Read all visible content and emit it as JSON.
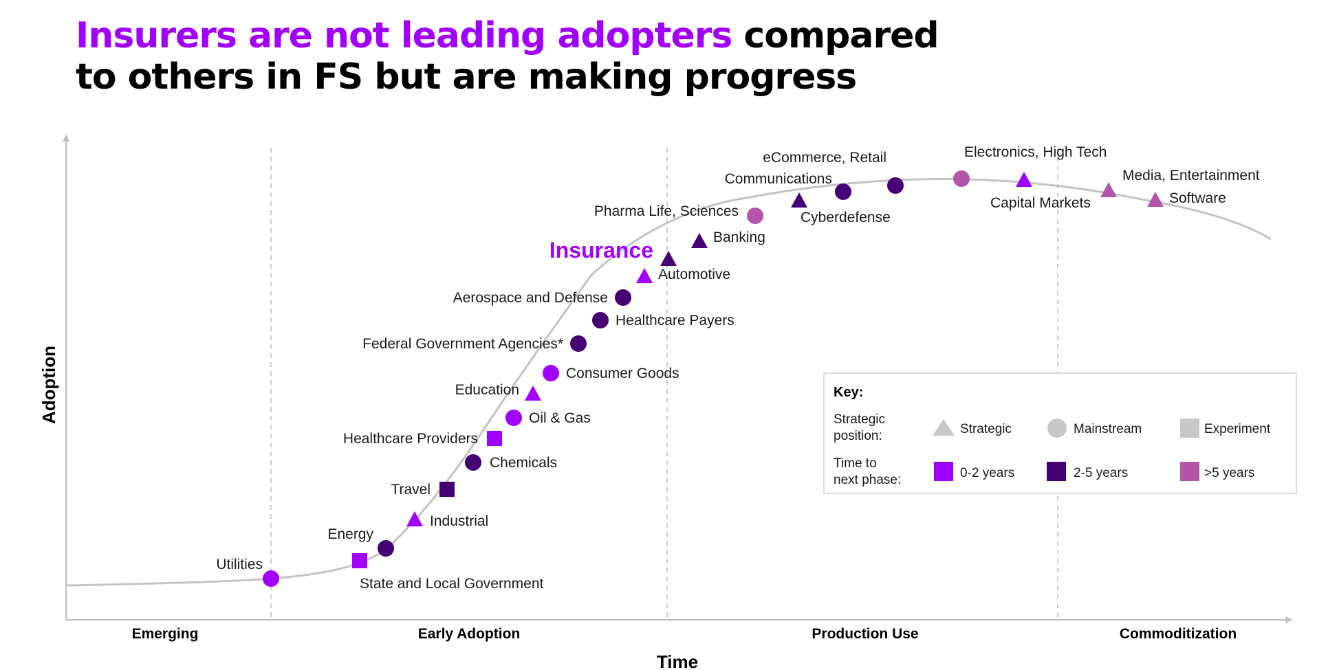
{
  "title": {
    "accent": "Insurers are not leading adopters",
    "rest_line1": " compared",
    "line2": "to others in FS but are making progress"
  },
  "colors": {
    "bright_purple": "#a100ff",
    "dark_purple": "#460073",
    "light_purple": "#b455aa",
    "curve": "#c4c4c4",
    "axis": "#bdbdbd",
    "key_gray": "#c8c8c8"
  },
  "chart_data": {
    "type": "scatter",
    "x_label": "Time",
    "y_label": "Adoption",
    "phases": [
      "Emerging",
      "Early Adoption",
      "Production Use",
      "Commoditization"
    ],
    "highlight": "Insurance",
    "points": [
      {
        "name": "Utilities",
        "shape": "circle",
        "time": "0-2 years"
      },
      {
        "name": "State and Local Government",
        "shape": "square",
        "time": "0-2 years"
      },
      {
        "name": "Energy",
        "shape": "circle",
        "time": "2-5 years"
      },
      {
        "name": "Industrial",
        "shape": "triangle",
        "time": "0-2 years"
      },
      {
        "name": "Travel",
        "shape": "square",
        "time": "2-5 years"
      },
      {
        "name": "Chemicals",
        "shape": "circle",
        "time": "2-5 years"
      },
      {
        "name": "Healthcare Providers",
        "shape": "square",
        "time": "0-2 years"
      },
      {
        "name": "Oil & Gas",
        "shape": "circle",
        "time": "0-2 years"
      },
      {
        "name": "Education",
        "shape": "triangle",
        "time": "0-2 years"
      },
      {
        "name": "Consumer Goods",
        "shape": "circle",
        "time": "0-2 years"
      },
      {
        "name": "Federal Government Agencies*",
        "shape": "circle",
        "time": "2-5 years"
      },
      {
        "name": "Healthcare Payers",
        "shape": "circle",
        "time": "2-5 years"
      },
      {
        "name": "Aerospace and Defense",
        "shape": "circle",
        "time": "2-5 years"
      },
      {
        "name": "Automotive",
        "shape": "triangle",
        "time": "0-2 years"
      },
      {
        "name": "Insurance",
        "shape": "triangle",
        "time": "2-5 years"
      },
      {
        "name": "Banking",
        "shape": "triangle",
        "time": "2-5 years"
      },
      {
        "name": "Pharma Life, Sciences",
        "shape": "circle",
        "time": ">5 years"
      },
      {
        "name": "Communications",
        "shape": "triangle",
        "time": "2-5 years"
      },
      {
        "name": "Cyberdefense",
        "shape": "circle",
        "time": "2-5 years"
      },
      {
        "name": "eCommerce, Retail",
        "shape": "circle",
        "time": "2-5 years"
      },
      {
        "name": "Electronics, High Tech",
        "shape": "circle",
        "time": ">5 years"
      },
      {
        "name": "Capital Markets",
        "shape": "triangle",
        "time": "0-2 years"
      },
      {
        "name": "Media, Entertainment",
        "shape": "triangle",
        "time": ">5 years"
      },
      {
        "name": "Software",
        "shape": "triangle",
        "time": ">5 years"
      }
    ]
  },
  "key": {
    "heading": "Key:",
    "strategic_label_1": "Strategic",
    "strategic_label_2": "position:",
    "time_label_1": "Time to",
    "time_label_2": "next phase:",
    "shapes": [
      {
        "shape": "triangle",
        "label": "Strategic"
      },
      {
        "shape": "circle",
        "label": "Mainstream"
      },
      {
        "shape": "square",
        "label": "Experiment"
      }
    ],
    "times": [
      {
        "label": "0-2 years"
      },
      {
        "label": "2-5 years"
      },
      {
        "label": ">5 years"
      }
    ]
  }
}
